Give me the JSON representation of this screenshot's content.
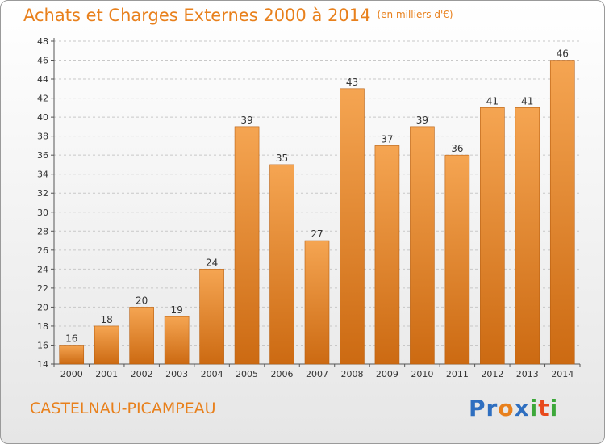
{
  "header": {
    "title": "Achats et Charges Externes 2000 à 2014",
    "subtitle": "(en milliers d'€)"
  },
  "footer": {
    "commune": "CASTELNAU-PICAMPEAU",
    "logo_letters": [
      "P",
      "r",
      "o",
      "x",
      "i",
      "t",
      "i"
    ]
  },
  "colors": {
    "title": "#e8801c",
    "bar_light": "#f5a552",
    "bar_dark": "#cc6a12",
    "logo": [
      "#2f6fc0",
      "#2f6fc0",
      "#e8801c",
      "#2f6fc0",
      "#3da83a",
      "#e84a1c",
      "#3da83a"
    ]
  },
  "chart_data": {
    "type": "bar",
    "title": "Achats et Charges Externes 2000 à 2014",
    "subtitle": "(en milliers d'€)",
    "categories": [
      "2000",
      "2001",
      "2002",
      "2003",
      "2004",
      "2005",
      "2006",
      "2007",
      "2008",
      "2009",
      "2010",
      "2011",
      "2012",
      "2013",
      "2014"
    ],
    "values": [
      16,
      18,
      20,
      19,
      24,
      39,
      35,
      27,
      43,
      37,
      39,
      36,
      41,
      41,
      46
    ],
    "ylim": [
      14,
      48
    ],
    "yticks": [
      14,
      16,
      18,
      20,
      22,
      24,
      26,
      28,
      30,
      32,
      34,
      36,
      38,
      40,
      42,
      44,
      46,
      48
    ],
    "grid": "horizontal-dashed",
    "data_labels": true
  }
}
